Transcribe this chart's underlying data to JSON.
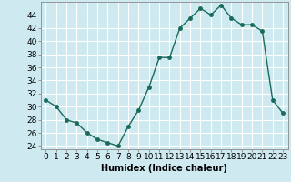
{
  "x": [
    0,
    1,
    2,
    3,
    4,
    5,
    6,
    7,
    8,
    9,
    10,
    11,
    12,
    13,
    14,
    15,
    16,
    17,
    18,
    19,
    20,
    21,
    22,
    23
  ],
  "y": [
    31,
    30,
    28,
    27.5,
    26,
    25,
    24.5,
    24,
    27,
    29.5,
    33,
    37.5,
    37.5,
    42,
    43.5,
    45,
    44,
    45.5,
    43.5,
    42.5,
    42.5,
    41.5,
    31,
    29
  ],
  "line_color": "#1a6b5a",
  "marker_color": "#1a6b5a",
  "bg_color": "#ceeaf0",
  "grid_color": "#ffffff",
  "xlabel": "Humidex (Indice chaleur)",
  "ylim": [
    23.5,
    46
  ],
  "yticks": [
    24,
    26,
    28,
    30,
    32,
    34,
    36,
    38,
    40,
    42,
    44
  ],
  "xticks": [
    0,
    1,
    2,
    3,
    4,
    5,
    6,
    7,
    8,
    9,
    10,
    11,
    12,
    13,
    14,
    15,
    16,
    17,
    18,
    19,
    20,
    21,
    22,
    23
  ],
  "xlabel_fontsize": 7,
  "tick_fontsize": 6.5,
  "line_width": 1.0,
  "marker_size": 2.5
}
